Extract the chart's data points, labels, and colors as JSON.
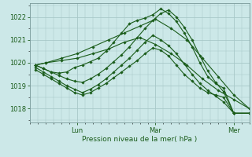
{
  "background_color": "#cce8e8",
  "grid_color": "#a8c8c8",
  "line_color": "#1a5c1a",
  "marker_color": "#1a5c1a",
  "xlabel_text": "Pression niveau de la mer( hPa )",
  "yticks": [
    1018,
    1019,
    1020,
    1021,
    1022
  ],
  "ylim": [
    1017.4,
    1022.6
  ],
  "xlim": [
    0,
    84
  ],
  "xtick_positions": [
    18,
    48,
    78
  ],
  "xtick_labels": [
    "Lun",
    "Mar",
    "Mer"
  ],
  "figsize": [
    3.2,
    2.0
  ],
  "dpi": 100,
  "series": [
    {
      "x": [
        2,
        6,
        12,
        18,
        24,
        30,
        36,
        42,
        48,
        54,
        60,
        66,
        72,
        78,
        84
      ],
      "y": [
        1019.9,
        1020.0,
        1020.2,
        1020.4,
        1020.7,
        1021.0,
        1021.3,
        1021.6,
        1021.9,
        1021.5,
        1021.0,
        1020.2,
        1019.4,
        1018.6,
        1018.0
      ]
    },
    {
      "x": [
        2,
        6,
        12,
        18,
        24,
        30,
        36,
        42,
        48,
        54,
        60,
        66,
        72,
        78,
        84
      ],
      "y": [
        1019.9,
        1020.0,
        1020.1,
        1020.2,
        1020.4,
        1020.6,
        1020.9,
        1021.1,
        1020.8,
        1020.4,
        1019.9,
        1019.3,
        1018.8,
        1018.4,
        1018.0
      ]
    },
    {
      "x": [
        2,
        5,
        8,
        11,
        14,
        17,
        20,
        23,
        26,
        29,
        32,
        35,
        38,
        41,
        44,
        47,
        50,
        53,
        56,
        59,
        62,
        65,
        68,
        71,
        74,
        78,
        84
      ],
      "y": [
        1019.9,
        1019.75,
        1019.6,
        1019.55,
        1019.6,
        1019.8,
        1019.9,
        1020.05,
        1020.2,
        1020.5,
        1020.9,
        1021.3,
        1021.7,
        1021.85,
        1021.95,
        1022.1,
        1022.35,
        1022.15,
        1021.8,
        1021.3,
        1020.7,
        1020.0,
        1019.4,
        1019.1,
        1018.9,
        1017.8,
        1017.8
      ]
    },
    {
      "x": [
        2,
        5,
        8,
        11,
        14,
        17,
        20,
        23,
        26,
        29,
        32,
        35,
        38,
        41,
        44,
        47,
        50,
        53,
        56,
        59,
        62,
        65,
        68,
        71,
        74,
        78,
        84
      ],
      "y": [
        1019.7,
        1019.5,
        1019.3,
        1019.1,
        1018.9,
        1018.7,
        1018.6,
        1018.7,
        1018.9,
        1019.1,
        1019.35,
        1019.6,
        1019.85,
        1020.1,
        1020.4,
        1020.65,
        1020.55,
        1020.3,
        1019.9,
        1019.5,
        1019.2,
        1018.9,
        1018.7,
        1018.6,
        1018.5,
        1017.8,
        1017.8
      ]
    },
    {
      "x": [
        2,
        5,
        8,
        11,
        14,
        17,
        20,
        23,
        26,
        29,
        32,
        35,
        38,
        41,
        44,
        47,
        50,
        53,
        56,
        59,
        62,
        65,
        68,
        71,
        74,
        78,
        84
      ],
      "y": [
        1019.9,
        1019.75,
        1019.6,
        1019.45,
        1019.3,
        1019.2,
        1019.15,
        1019.3,
        1019.5,
        1019.75,
        1020.05,
        1020.35,
        1020.7,
        1021.1,
        1021.5,
        1021.85,
        1022.15,
        1022.3,
        1022.0,
        1021.55,
        1021.0,
        1020.3,
        1019.65,
        1019.15,
        1018.75,
        1017.8,
        1017.8
      ]
    },
    {
      "x": [
        2,
        5,
        8,
        11,
        14,
        17,
        20,
        23,
        26,
        29,
        32,
        35,
        38,
        41,
        44,
        47,
        50,
        53,
        56,
        59,
        62,
        65,
        68,
        71,
        74,
        78,
        84
      ],
      "y": [
        1019.8,
        1019.6,
        1019.4,
        1019.2,
        1019.0,
        1018.85,
        1018.7,
        1018.85,
        1019.05,
        1019.3,
        1019.6,
        1019.9,
        1020.2,
        1020.55,
        1020.9,
        1021.2,
        1021.0,
        1020.75,
        1020.4,
        1019.95,
        1019.5,
        1019.1,
        1018.8,
        1018.55,
        1018.3,
        1017.8,
        1017.8
      ]
    }
  ]
}
